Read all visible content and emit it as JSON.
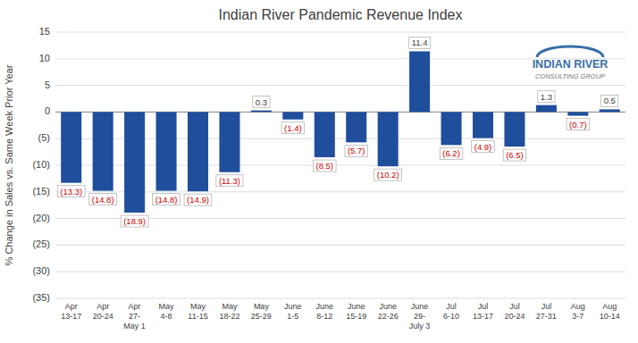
{
  "chart_data": {
    "type": "bar",
    "title": "Indian River Pandemic Revenue Index",
    "ylabel": "% Change in Sales vs. Same Week Prior Year",
    "categories": [
      "Apr\n13-17",
      "Apr\n20-24",
      "Apr\n27-\nMay 1",
      "May\n4-8",
      "May\n11-15",
      "May\n18-22",
      "May\n25-29",
      "June\n1-5",
      "June\n8-12",
      "June\n15-19",
      "June\n22-26",
      "June\n29-\nJuly 3",
      "Jul\n6-10",
      "Jul\n13-17",
      "Jul\n20-24",
      "Jul\n27-31",
      "Aug\n3-7",
      "Aug\n10-14"
    ],
    "values": [
      -13.3,
      -14.8,
      -18.9,
      -14.8,
      -14.9,
      -11.3,
      0.3,
      -1.4,
      -8.5,
      -5.7,
      -10.2,
      11.4,
      -6.2,
      -4.9,
      -6.5,
      1.3,
      -0.7,
      0.5
    ],
    "value_labels": [
      "(13.3)",
      "(14.8)",
      "(18.9)",
      "(14.8)",
      "(14.9)",
      "(11.3)",
      "0.3",
      "(1.4)",
      "(8.5)",
      "(5.7)",
      "(10.2)",
      "11.4",
      "(6.2)",
      "(4.9)",
      "(6.5)",
      "1.3",
      "(0.7)",
      "0.5"
    ],
    "color": "#1f4e9c",
    "ylim": [
      -35,
      15
    ],
    "yticks": [
      15,
      10,
      5,
      0,
      {
        "value": -5,
        "label": "(5)"
      },
      {
        "value": -10,
        "label": "(10)"
      },
      {
        "value": -15,
        "label": "(15)"
      },
      {
        "value": -20,
        "label": "(20)"
      },
      {
        "value": -25,
        "label": "(25)"
      },
      {
        "value": -30,
        "label": "(30)"
      },
      {
        "value": -35,
        "label": "(35)"
      }
    ],
    "grid": true,
    "data_labels": true,
    "annotations": [
      "INDIAN RIVER",
      "CONSULTING GROUP"
    ]
  }
}
